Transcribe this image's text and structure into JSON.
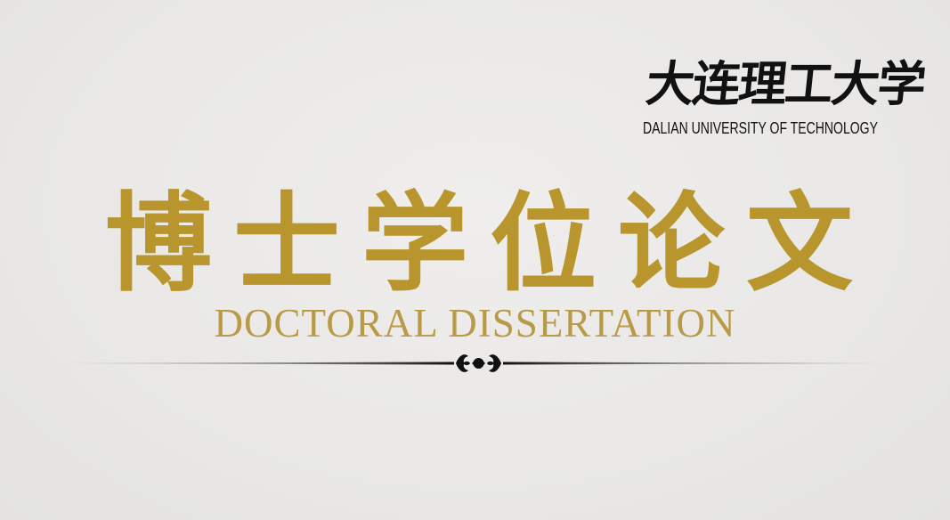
{
  "logo": {
    "name_cn": "大连理工大学",
    "name_en": "DALIAN UNIVERSITY OF TECHNOLOGY"
  },
  "title": {
    "chars": [
      "博",
      "士",
      "学",
      "位",
      "论",
      "文"
    ],
    "subtitle": "DOCTORAL DISSERTATION"
  },
  "colors": {
    "background": "#ebeae8",
    "gold": "#b8962d",
    "subtitle_gold": "#b89a47",
    "text_dark": "#111111"
  },
  "ornament": {
    "icon": "flourish-ornament-icon"
  }
}
